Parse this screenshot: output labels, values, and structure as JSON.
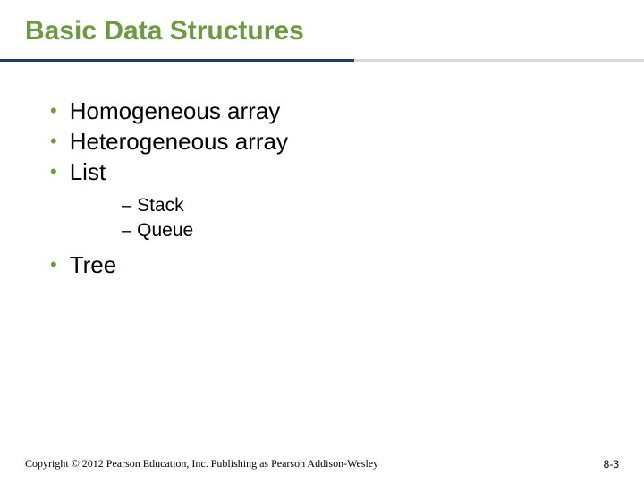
{
  "title": {
    "text": "Basic Data Structures",
    "color": "#6b9a3f",
    "fontsize": 30
  },
  "underline": {
    "dark_color": "#1f3b66",
    "light_color": "#d9d9d9"
  },
  "bullets": {
    "dot_color": "#6b9a3f",
    "items": [
      {
        "text": "Homogeneous array"
      },
      {
        "text": "Heterogeneous array"
      },
      {
        "text": "List",
        "sub": [
          "Stack",
          "Queue"
        ]
      },
      {
        "text": "Tree"
      }
    ]
  },
  "footer": {
    "copyright": "Copyright © 2012 Pearson Education, Inc. Publishing as Pearson Addison-Wesley",
    "page": "8-3"
  }
}
